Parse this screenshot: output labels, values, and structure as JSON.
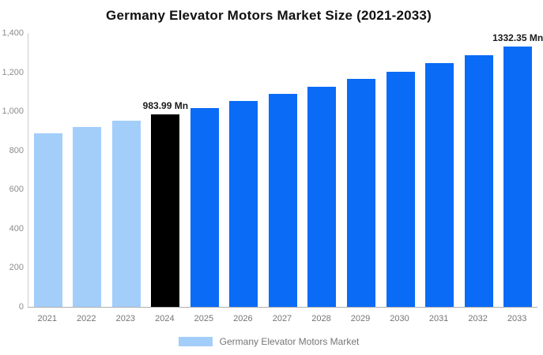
{
  "title": "Germany Elevator Motors Market Size (2021-2033)",
  "legend": {
    "label": "Germany Elevator Motors Market",
    "swatch_color": "#A3CEFA"
  },
  "colors": {
    "past_bar": "#A3CEFA",
    "base_year_bar": "#000000",
    "forecast_bar": "#0A6BF6",
    "axis_line": "#CCCCCC",
    "baseline": "#B0B0B0",
    "tick_text": "#8C8C8C",
    "x_label_text": "#757575",
    "title_text": "#111111",
    "data_label_text": "#1A1A1A"
  },
  "y_axis": {
    "tick_labels": [
      "0",
      "200",
      "400",
      "600",
      "800",
      "1,000",
      "1,200",
      "1,400"
    ],
    "tick_values": [
      0,
      200,
      400,
      600,
      800,
      1000,
      1200,
      1400
    ]
  },
  "chart_data": {
    "type": "bar",
    "title": "Germany Elevator Motors Market Size (2021-2033)",
    "series_name": "Germany Elevator Motors Market",
    "unit": "Mn",
    "xlabel": "",
    "ylabel": "",
    "ylim": [
      0,
      1400
    ],
    "yticks": [
      0,
      200,
      400,
      600,
      800,
      1000,
      1200,
      1400
    ],
    "grid": false,
    "legend_position": "bottom",
    "categories": [
      "2021",
      "2022",
      "2023",
      "2024",
      "2025",
      "2026",
      "2027",
      "2028",
      "2029",
      "2030",
      "2031",
      "2032",
      "2033"
    ],
    "values": [
      889.45,
      919.91,
      951.41,
      983.99,
      1017.69,
      1052.55,
      1088.6,
      1125.88,
      1164.44,
      1204.32,
      1245.56,
      1288.22,
      1332.35
    ],
    "data_labels": [
      {
        "index": 3,
        "text": "983.99 Mn"
      },
      {
        "index": 12,
        "text": "1332.35 Mn"
      }
    ],
    "bar_color_roles": [
      "past",
      "past",
      "past",
      "base_year",
      "forecast",
      "forecast",
      "forecast",
      "forecast",
      "forecast",
      "forecast",
      "forecast",
      "forecast",
      "forecast"
    ]
  }
}
